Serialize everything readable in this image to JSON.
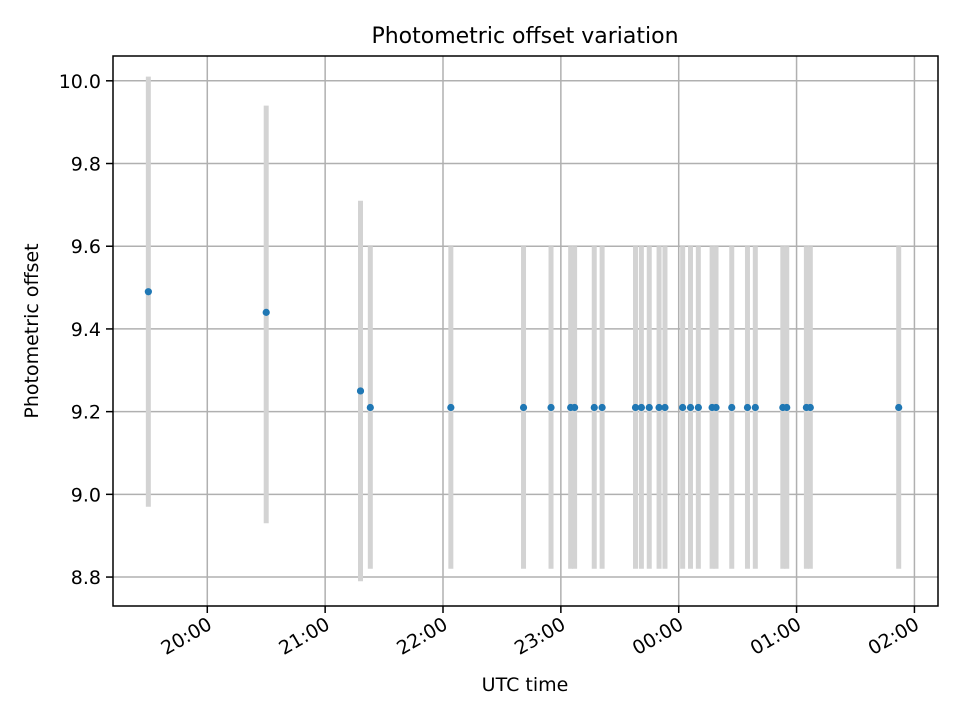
{
  "chart_data": {
    "type": "scatter",
    "title": "Photometric offset variation",
    "xlabel": "UTC time",
    "ylabel": "Photometric offset",
    "x_unit": "UTC time (HH:MM)",
    "xlim": [
      "19:12",
      "02:12"
    ],
    "ylim": [
      8.73,
      10.06
    ],
    "grid": true,
    "legend": "none",
    "x_ticks": [
      "20:00",
      "21:00",
      "22:00",
      "23:00",
      "00:00",
      "01:00",
      "02:00"
    ],
    "y_ticks": [
      "8.8",
      "9.0",
      "9.2",
      "9.4",
      "9.6",
      "9.8",
      "10.0"
    ],
    "colors": {
      "points": "#1f77b4",
      "error_bars": "#d3d3d3",
      "grid": "#b0b0b0"
    },
    "points": [
      {
        "x": "19:30",
        "y": 9.49,
        "ylow": 8.97,
        "yhigh": 10.01
      },
      {
        "x": "20:30",
        "y": 9.44,
        "ylow": 8.93,
        "yhigh": 9.94
      },
      {
        "x": "21:18",
        "y": 9.25,
        "ylow": 8.79,
        "yhigh": 9.71
      },
      {
        "x": "21:23",
        "y": 9.21,
        "ylow": 8.82,
        "yhigh": 9.6
      },
      {
        "x": "22:04",
        "y": 9.21,
        "ylow": 8.82,
        "yhigh": 9.6
      },
      {
        "x": "22:41",
        "y": 9.21,
        "ylow": 8.82,
        "yhigh": 9.6
      },
      {
        "x": "22:55",
        "y": 9.21,
        "ylow": 8.82,
        "yhigh": 9.6
      },
      {
        "x": "23:05",
        "y": 9.21,
        "ylow": 8.82,
        "yhigh": 9.6
      },
      {
        "x": "23:07",
        "y": 9.21,
        "ylow": 8.82,
        "yhigh": 9.6
      },
      {
        "x": "23:17",
        "y": 9.21,
        "ylow": 8.82,
        "yhigh": 9.6
      },
      {
        "x": "23:21",
        "y": 9.21,
        "ylow": 8.82,
        "yhigh": 9.6
      },
      {
        "x": "23:38",
        "y": 9.21,
        "ylow": 8.82,
        "yhigh": 9.6
      },
      {
        "x": "23:41",
        "y": 9.21,
        "ylow": 8.82,
        "yhigh": 9.6
      },
      {
        "x": "23:45",
        "y": 9.21,
        "ylow": 8.82,
        "yhigh": 9.6
      },
      {
        "x": "23:50",
        "y": 9.21,
        "ylow": 8.82,
        "yhigh": 9.6
      },
      {
        "x": "23:53",
        "y": 9.21,
        "ylow": 8.82,
        "yhigh": 9.6
      },
      {
        "x": "00:02",
        "y": 9.21,
        "ylow": 8.82,
        "yhigh": 9.6
      },
      {
        "x": "00:06",
        "y": 9.21,
        "ylow": 8.82,
        "yhigh": 9.6
      },
      {
        "x": "00:10",
        "y": 9.21,
        "ylow": 8.82,
        "yhigh": 9.6
      },
      {
        "x": "00:17",
        "y": 9.21,
        "ylow": 8.82,
        "yhigh": 9.6
      },
      {
        "x": "00:19",
        "y": 9.21,
        "ylow": 8.82,
        "yhigh": 9.6
      },
      {
        "x": "00:27",
        "y": 9.21,
        "ylow": 8.82,
        "yhigh": 9.6
      },
      {
        "x": "00:35",
        "y": 9.21,
        "ylow": 8.82,
        "yhigh": 9.6
      },
      {
        "x": "00:39",
        "y": 9.21,
        "ylow": 8.82,
        "yhigh": 9.6
      },
      {
        "x": "00:53",
        "y": 9.21,
        "ylow": 8.82,
        "yhigh": 9.6
      },
      {
        "x": "00:55",
        "y": 9.21,
        "ylow": 8.82,
        "yhigh": 9.6
      },
      {
        "x": "01:05",
        "y": 9.21,
        "ylow": 8.82,
        "yhigh": 9.6
      },
      {
        "x": "01:07",
        "y": 9.21,
        "ylow": 8.82,
        "yhigh": 9.6
      },
      {
        "x": "01:52",
        "y": 9.21,
        "ylow": 8.82,
        "yhigh": 9.6
      }
    ]
  }
}
